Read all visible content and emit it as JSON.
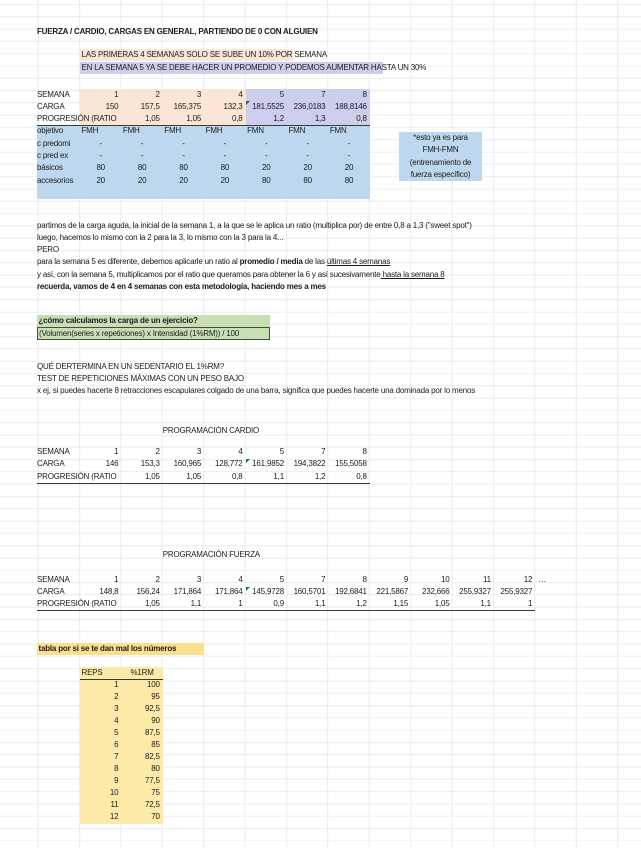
{
  "page_title": "FUERZA / CARDIO, CARGAS EN GENERAL, PARTIENDO DE 0 CON ALGUIEN",
  "notes": {
    "first_weeks": "LAS PRIMERAS 4 SEMANAS SOLO SE SUBE UN 10% POR SEMANA",
    "week_five": "EN LA SEMANA 5 YA SE DEBE HACER UN PROMEDIO Y PODEMOS AUMENTAR HASTA UN 30%"
  },
  "colors": {
    "peach": "#fbe5d6",
    "lavender": "#cdcdee",
    "blue": "#bdd7ee",
    "green": "#c6e0b4",
    "yellow_caption": "#fbdf8d",
    "yellow_table": "#fdeaa9",
    "flag_green": "#1e7145"
  },
  "main_table": {
    "rows": [
      {
        "label": "SEMANA",
        "values": [
          "1",
          "2",
          "3",
          "4",
          "5",
          "7",
          "8"
        ]
      },
      {
        "label": "CARGA",
        "values": [
          "150",
          "157,5",
          "165,375",
          "132,3",
          "181,5525",
          "236,0183",
          "188,8146"
        ]
      },
      {
        "label": "PROGRESIÓN (RATIO",
        "values": [
          "",
          "1,05",
          "1,05",
          "0,8",
          "1,2",
          "1,3",
          "0,8"
        ]
      },
      {
        "label": "objetivo",
        "values": [
          "FMH",
          "FMH",
          "FMH",
          "FMH",
          "FMN",
          "FMN",
          "FMN"
        ]
      },
      {
        "label": "c predomi",
        "values": [
          "-",
          "-",
          "-",
          "-",
          "-",
          "-",
          "-"
        ]
      },
      {
        "label": "c pred ex",
        "values": [
          "-",
          "-",
          "-",
          "-",
          "-",
          "-",
          "-"
        ]
      },
      {
        "label": "básicos",
        "values": [
          "80",
          "80",
          "80",
          "80",
          "20",
          "20",
          "20"
        ]
      },
      {
        "label": "accesorios",
        "values": [
          "20",
          "20",
          "20",
          "20",
          "80",
          "80",
          "80"
        ]
      }
    ]
  },
  "side_note": {
    "lines": [
      "*esto ya es para",
      "FMH-FMN",
      "(entrenamiento de",
      "fuerza específico)"
    ]
  },
  "explanation": {
    "lines": [
      [
        {
          "t": "partimos de la carga aguda, la inicial de la semana 1, a la que se le aplica un ratio (multiplica por) de entre 0,8 a 1,3 (\"sweet spot\")"
        }
      ],
      [
        {
          "t": "luego, hacemos lo mismo con la 2 para la 3, lo mismo con la 3 para la 4..."
        }
      ],
      [
        {
          "t": "PERO"
        }
      ],
      [
        {
          "t": "para la semana 5 es diferente, debemos aplicarle un ratio al "
        },
        {
          "t": "promedio / media",
          "b": true
        },
        {
          "t": " de las "
        },
        {
          "t": "últimas 4 semanas",
          "u": true
        }
      ],
      [
        {
          "t": "y así, con la semana 5, multiplicamos por el ratio que queramos para obtener la 6 y así sucesivamente"
        },
        {
          "t": " hasta la semana 8",
          "u": true
        }
      ],
      [
        {
          "t": "recuerda, vamos de 4 en 4 semanas con esta metodología, haciendo mes a mes",
          "b": true
        }
      ]
    ]
  },
  "carga_formula": {
    "question": "¿cómo calculamos la carga de un ejercicio?",
    "formula": "(Volumen(series x repeticiones) x Intensidad (1%RM)) / 100"
  },
  "sedentario": [
    "QUÉ DERTERMINA EN UN SEDENTARIO EL 1%RM?",
    "TEST DE REPETICIONES MÁXIMAS CON UN PESO BAJO",
    "x ej, si puedes hacerte 8 retracciones escapulares colgado de una barra, significa que puedes hacerte una dominada por lo menos"
  ],
  "cardio_table": {
    "title": "PROGRAMACIÓN CARDIO",
    "rows": [
      {
        "label": "SEMANA",
        "values": [
          "1",
          "2",
          "3",
          "4",
          "5",
          "7",
          "8"
        ]
      },
      {
        "label": "CARGA",
        "values": [
          "146",
          "153,3",
          "160,965",
          "128,772",
          "161,9852",
          "194,3822",
          "155,5058"
        ]
      },
      {
        "label": "PROGRESIÓN (RATIO",
        "values": [
          "",
          "1,05",
          "1,05",
          "0,8",
          "1,1",
          "1,2",
          "0,8"
        ]
      }
    ]
  },
  "fuerza_table": {
    "title": "PROGRAMACIÓN FUERZA",
    "ellipsis": "…",
    "rows": [
      {
        "label": "SEMANA",
        "values": [
          "1",
          "2",
          "3",
          "4",
          "5",
          "7",
          "8",
          "9",
          "10",
          "11",
          "12"
        ]
      },
      {
        "label": "CARGA",
        "values": [
          "148,8",
          "156,24",
          "171,864",
          "171,864",
          "145,9728",
          "160,5701",
          "192,6841",
          "221,5867",
          "232,666",
          "255,9327",
          "255,9327"
        ]
      },
      {
        "label": "PROGRESIÓN (RATIO",
        "values": [
          "",
          "1,05",
          "1,1",
          "1",
          "0,9",
          "1,1",
          "1,2",
          "1,15",
          "1,05",
          "1,1",
          "1"
        ]
      }
    ]
  },
  "rm_table": {
    "caption": "tabla por si se te dan mal los números",
    "headers": [
      "REPS",
      "%1RM"
    ],
    "rows": [
      [
        "1",
        "100"
      ],
      [
        "2",
        "95"
      ],
      [
        "3",
        "92,5"
      ],
      [
        "4",
        "90"
      ],
      [
        "5",
        "87,5"
      ],
      [
        "6",
        "85"
      ],
      [
        "7",
        "82,5"
      ],
      [
        "8",
        "80"
      ],
      [
        "9",
        "77,5"
      ],
      [
        "10",
        "75"
      ],
      [
        "11",
        "72,5"
      ],
      [
        "12",
        "70"
      ]
    ]
  }
}
